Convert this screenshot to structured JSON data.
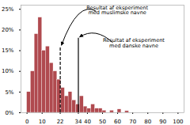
{
  "chart_data": {
    "type": "histogram",
    "bins": [
      0,
      2.5,
      5,
      7.5,
      10,
      12.5,
      15,
      17.5,
      20,
      22.5,
      25,
      27.5,
      30,
      32.5,
      35,
      37.5,
      40,
      42.5,
      45,
      47.5,
      50,
      52.5,
      55,
      57.5,
      60,
      62.5,
      65,
      67.5,
      70
    ],
    "values": [
      5,
      10,
      19,
      23,
      15,
      16,
      12,
      10,
      8,
      6,
      4,
      5,
      3,
      2,
      4,
      1.5,
      1,
      2,
      1,
      1,
      0.5,
      0,
      0.5,
      0,
      0.8,
      0,
      0.4,
      0
    ],
    "color": "#b04a4f",
    "xlim": [
      -4,
      104
    ],
    "xticks": [
      0,
      10,
      22,
      34,
      40,
      50,
      60,
      70,
      80,
      90,
      100
    ],
    "ylim": [
      0,
      26
    ],
    "yticks": [
      {
        "value": 0,
        "label": "0%"
      },
      {
        "value": 5,
        "label": "5%"
      },
      {
        "value": 10,
        "label": "10%"
      },
      {
        "value": 15,
        "label": "15%"
      },
      {
        "value": 20,
        "label": "20%"
      },
      {
        "value": 25,
        "label": "25%"
      }
    ],
    "grid": false,
    "annotations": [
      {
        "x": 22,
        "y": 16,
        "label": "Resultat af eksperiment\nmed muslimske navne",
        "line_style": "dashed"
      },
      {
        "x": 34,
        "y": 18,
        "label": "Resultat af eksperiment\nmed danske navne",
        "line_style": "solid"
      }
    ]
  }
}
